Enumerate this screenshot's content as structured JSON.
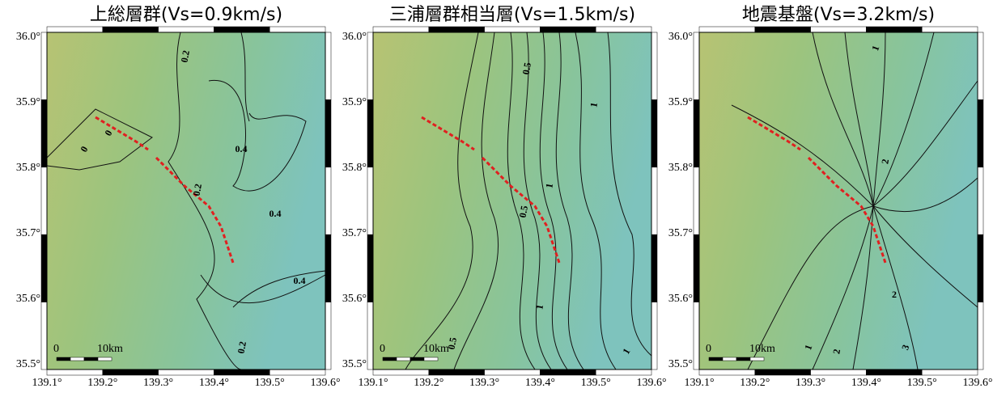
{
  "panels": [
    {
      "title": "上総層群(Vs=0.9km/s)",
      "contour_labels": [
        "0",
        "0",
        "0.2",
        "0.4",
        "0.2",
        "0.4",
        "0.4",
        "0.2"
      ]
    },
    {
      "title": "三浦層群相当層(Vs=1.5km/s)",
      "contour_labels": [
        "0.5",
        "1",
        "1",
        "0.5",
        "1",
        "0.5",
        "1"
      ]
    },
    {
      "title": "地震基盤(Vs=3.2km/s)",
      "contour_labels": [
        "1",
        "2",
        "2",
        "1",
        "2",
        "3"
      ]
    }
  ],
  "yticks": [
    "36.0°",
    "35.9°",
    "35.8°",
    "35.7°",
    "35.6°",
    "35.5°"
  ],
  "xticks": [
    "139.1°",
    "139.2°",
    "139.3°",
    "139.4°",
    "139.5°",
    "139.6°"
  ],
  "scale_bar": [
    "0",
    "10km"
  ]
}
